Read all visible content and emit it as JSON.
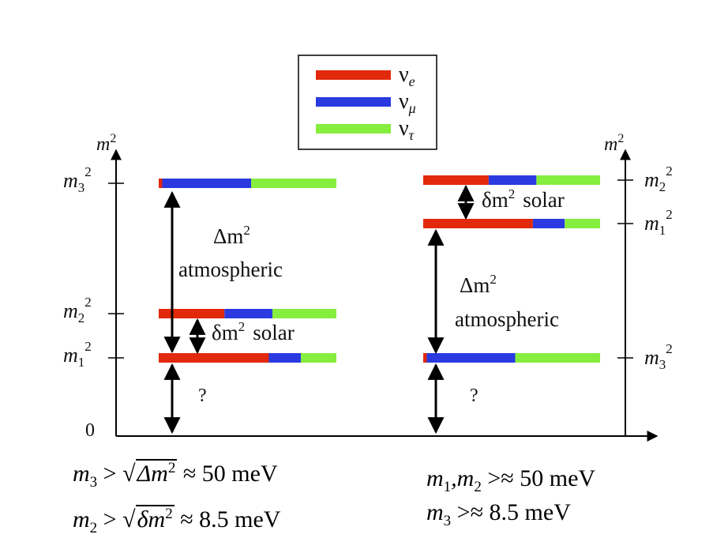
{
  "legend": [
    {
      "label": "ν",
      "sub": "e",
      "color": "#e2290c"
    },
    {
      "label": "ν",
      "sub": "μ",
      "color": "#2a3ae0"
    },
    {
      "label": "ν",
      "sub": "τ",
      "color": "#86ee3e"
    }
  ],
  "axis": {
    "y_label": "m",
    "y_exp": "2",
    "zero": "0"
  },
  "normal": {
    "levels": [
      {
        "name": "m",
        "sub": "3",
        "sup": "2",
        "mix": [
          0.02,
          0.5,
          0.48
        ]
      },
      {
        "name": "m",
        "sub": "2",
        "sup": "2",
        "mix": [
          0.37,
          0.27,
          0.36
        ]
      },
      {
        "name": "m",
        "sub": "1",
        "sup": "2",
        "mix": [
          0.62,
          0.18,
          0.2
        ]
      }
    ],
    "dm_label": "Δm",
    "dm_exp": "2",
    "dm_word": "atmospheric",
    "sm_label": "δm",
    "sm_exp": "2",
    "sm_word": "solar",
    "question": "?"
  },
  "inverted": {
    "levels": [
      {
        "name": "m",
        "sub": "2",
        "sup": "2",
        "mix": [
          0.37,
          0.27,
          0.36
        ]
      },
      {
        "name": "m",
        "sub": "1",
        "sup": "2",
        "mix": [
          0.62,
          0.18,
          0.2
        ]
      },
      {
        "name": "m",
        "sub": "3",
        "sup": "2",
        "mix": [
          0.02,
          0.5,
          0.48
        ]
      }
    ],
    "dm_label": "Δm",
    "dm_exp": "2",
    "dm_word": "atmospheric",
    "sm_label": "δm",
    "sm_exp": "2",
    "sm_word": "solar",
    "question": "?"
  },
  "formulas": {
    "left1": {
      "lhs": "m",
      "lhs_sub": "3",
      "rad": "Δm",
      "rad_sup": "2",
      "rhs": "≈ 50  meV"
    },
    "left2": {
      "lhs": "m",
      "lhs_sub": "2",
      "rad": "δm",
      "rad_sup": "2",
      "rhs": "≈ 8.5  meV"
    },
    "right1": {
      "a": "m",
      "a_sub": "1",
      "b": ",m",
      "b_sub": "2",
      "rhs": " >≈ 50 meV"
    },
    "right2": {
      "a": "m",
      "a_sub": "3",
      "rhs": " >≈ 8.5 meV"
    }
  }
}
